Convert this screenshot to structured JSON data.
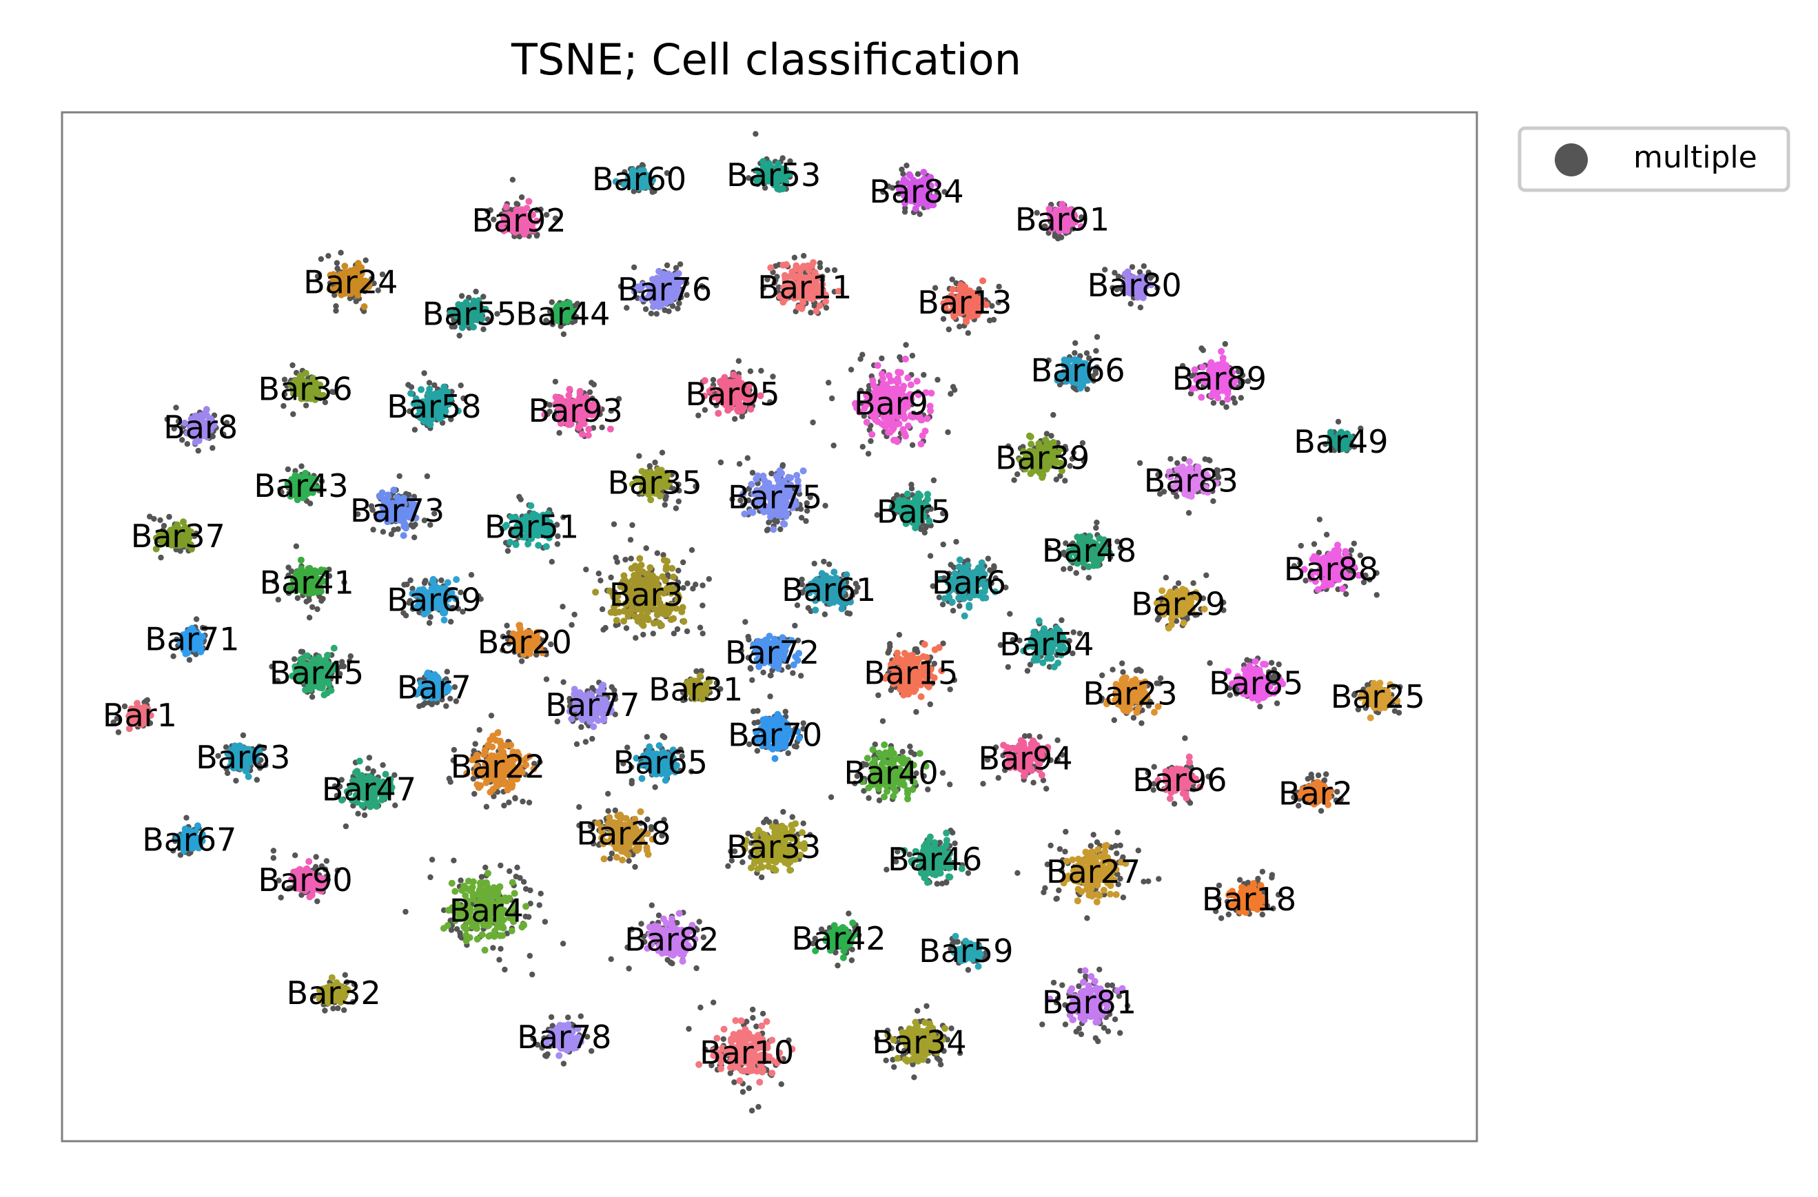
{
  "chart_data": {
    "type": "scatter",
    "title": "TSNE; Cell classification",
    "xlabel": "",
    "ylabel": "",
    "xlim": [
      0,
      1000
    ],
    "ylim": [
      0,
      1000
    ],
    "grid": false,
    "axis_ticks": false,
    "legend": {
      "placement": "outside-top-right",
      "entries": [
        "multiple"
      ],
      "marker_color": "#555555"
    },
    "series": [
      {
        "name": "multiple",
        "color": "#555555"
      }
    ],
    "clusters": [
      {
        "label": "Bar60",
        "x": 408,
        "y": 935,
        "spread": 12,
        "color": "#2aa7b8"
      },
      {
        "label": "Bar53",
        "x": 503,
        "y": 939,
        "spread": 14,
        "color": "#1fa38a"
      },
      {
        "label": "Bar84",
        "x": 604,
        "y": 923,
        "spread": 16,
        "color": "#d557e8"
      },
      {
        "label": "Bar91",
        "x": 707,
        "y": 896,
        "spread": 13,
        "color": "#ee5fc7"
      },
      {
        "label": "Bar92",
        "x": 323,
        "y": 895,
        "spread": 15,
        "color": "#f062b0"
      },
      {
        "label": "Bar24",
        "x": 204,
        "y": 835,
        "spread": 17,
        "color": "#cc8a23"
      },
      {
        "label": "Bar76",
        "x": 426,
        "y": 828,
        "spread": 20,
        "color": "#8f8cf2"
      },
      {
        "label": "Bar11",
        "x": 525,
        "y": 830,
        "spread": 22,
        "color": "#f47677"
      },
      {
        "label": "Bar13",
        "x": 638,
        "y": 815,
        "spread": 18,
        "color": "#f56d5e"
      },
      {
        "label": "Bar80",
        "x": 758,
        "y": 832,
        "spread": 12,
        "color": "#a184f0"
      },
      {
        "label": "Bar55",
        "x": 288,
        "y": 804,
        "spread": 13,
        "color": "#22a08f"
      },
      {
        "label": "Bar44",
        "x": 354,
        "y": 804,
        "spread": 10,
        "color": "#2bb05a"
      },
      {
        "label": "Bar36",
        "x": 172,
        "y": 731,
        "spread": 13,
        "color": "#84a22b"
      },
      {
        "label": "Bar58",
        "x": 263,
        "y": 714,
        "spread": 18,
        "color": "#23a4a4"
      },
      {
        "label": "Bar93",
        "x": 363,
        "y": 710,
        "spread": 20,
        "color": "#f25fb0"
      },
      {
        "label": "Bar95",
        "x": 474,
        "y": 726,
        "spread": 19,
        "color": "#f2628f"
      },
      {
        "label": "Bar9",
        "x": 586,
        "y": 717,
        "spread": 34,
        "color": "#f05fd8"
      },
      {
        "label": "Bar66",
        "x": 718,
        "y": 749,
        "spread": 14,
        "color": "#2aa0c8"
      },
      {
        "label": "Bar89",
        "x": 818,
        "y": 741,
        "spread": 19,
        "color": "#ee5fe6"
      },
      {
        "label": "Bar8",
        "x": 98,
        "y": 694,
        "spread": 12,
        "color": "#9f86ee"
      },
      {
        "label": "Bar49",
        "x": 904,
        "y": 680,
        "spread": 9,
        "color": "#1d9f8c"
      },
      {
        "label": "Bar39",
        "x": 693,
        "y": 664,
        "spread": 19,
        "color": "#7ea22a"
      },
      {
        "label": "Bar83",
        "x": 798,
        "y": 642,
        "spread": 17,
        "color": "#e07ff0"
      },
      {
        "label": "Bar43",
        "x": 169,
        "y": 637,
        "spread": 12,
        "color": "#2fb052"
      },
      {
        "label": "Bar35",
        "x": 419,
        "y": 640,
        "spread": 15,
        "color": "#98a02a"
      },
      {
        "label": "Bar75",
        "x": 504,
        "y": 626,
        "spread": 25,
        "color": "#7f8ff2"
      },
      {
        "label": "Bar5",
        "x": 602,
        "y": 612,
        "spread": 15,
        "color": "#22a88a"
      },
      {
        "label": "Bar73",
        "x": 237,
        "y": 613,
        "spread": 18,
        "color": "#6b8cf0"
      },
      {
        "label": "Bar51",
        "x": 332,
        "y": 597,
        "spread": 18,
        "color": "#22a89a"
      },
      {
        "label": "Bar37",
        "x": 82,
        "y": 588,
        "spread": 14,
        "color": "#7e9c28"
      },
      {
        "label": "Bar48",
        "x": 726,
        "y": 574,
        "spread": 17,
        "color": "#2aa377"
      },
      {
        "label": "Bar88",
        "x": 897,
        "y": 556,
        "spread": 20,
        "color": "#ee5fe3"
      },
      {
        "label": "Bar41",
        "x": 173,
        "y": 543,
        "spread": 17,
        "color": "#3cab40"
      },
      {
        "label": "Bar3",
        "x": 413,
        "y": 531,
        "spread": 36,
        "color": "#a3952a"
      },
      {
        "label": "Bar61",
        "x": 542,
        "y": 536,
        "spread": 19,
        "color": "#2b9eb5"
      },
      {
        "label": "Bar6",
        "x": 641,
        "y": 543,
        "spread": 21,
        "color": "#2aa3a8"
      },
      {
        "label": "Bar29",
        "x": 789,
        "y": 522,
        "spread": 17,
        "color": "#c8a030"
      },
      {
        "label": "Bar69",
        "x": 263,
        "y": 526,
        "spread": 17,
        "color": "#2fa1d6"
      },
      {
        "label": "Bar71",
        "x": 92,
        "y": 488,
        "spread": 11,
        "color": "#2e9df0"
      },
      {
        "label": "Bar20",
        "x": 327,
        "y": 485,
        "spread": 13,
        "color": "#e48a2b"
      },
      {
        "label": "Bar72",
        "x": 502,
        "y": 475,
        "spread": 17,
        "color": "#4d94f0"
      },
      {
        "label": "Bar54",
        "x": 696,
        "y": 483,
        "spread": 17,
        "color": "#26a59a"
      },
      {
        "label": "Bar45",
        "x": 180,
        "y": 455,
        "spread": 19,
        "color": "#2bab6e"
      },
      {
        "label": "Bar15",
        "x": 600,
        "y": 455,
        "spread": 24,
        "color": "#f57355"
      },
      {
        "label": "Bar85",
        "x": 844,
        "y": 445,
        "spread": 18,
        "color": "#ed5fe7"
      },
      {
        "label": "Bar7",
        "x": 263,
        "y": 441,
        "spread": 14,
        "color": "#2ea1de"
      },
      {
        "label": "Bar31",
        "x": 448,
        "y": 439,
        "spread": 11,
        "color": "#a29b2a"
      },
      {
        "label": "Bar23",
        "x": 755,
        "y": 435,
        "spread": 18,
        "color": "#e1902f"
      },
      {
        "label": "Bar25",
        "x": 930,
        "y": 432,
        "spread": 13,
        "color": "#d79f35"
      },
      {
        "label": "Bar1",
        "x": 55,
        "y": 414,
        "spread": 10,
        "color": "#f07080"
      },
      {
        "label": "Bar77",
        "x": 375,
        "y": 424,
        "spread": 19,
        "color": "#9f8bf0"
      },
      {
        "label": "Bar70",
        "x": 504,
        "y": 395,
        "spread": 18,
        "color": "#3296ec"
      },
      {
        "label": "Bar63",
        "x": 128,
        "y": 373,
        "spread": 14,
        "color": "#28a2c0"
      },
      {
        "label": "Bar22",
        "x": 308,
        "y": 364,
        "spread": 26,
        "color": "#e08a2e"
      },
      {
        "label": "Bar65",
        "x": 423,
        "y": 368,
        "spread": 16,
        "color": "#27a0c8"
      },
      {
        "label": "Bar94",
        "x": 681,
        "y": 372,
        "spread": 18,
        "color": "#f25f9a"
      },
      {
        "label": "Bar40",
        "x": 586,
        "y": 358,
        "spread": 24,
        "color": "#58b03a"
      },
      {
        "label": "Bar47",
        "x": 217,
        "y": 342,
        "spread": 18,
        "color": "#2aa57a"
      },
      {
        "label": "Bar96",
        "x": 790,
        "y": 351,
        "spread": 15,
        "color": "#f2659a"
      },
      {
        "label": "Bar2",
        "x": 886,
        "y": 338,
        "spread": 12,
        "color": "#ed8030"
      },
      {
        "label": "Bar67",
        "x": 90,
        "y": 293,
        "spread": 11,
        "color": "#27a2d4"
      },
      {
        "label": "Bar28",
        "x": 397,
        "y": 299,
        "spread": 21,
        "color": "#c89530"
      },
      {
        "label": "Bar33",
        "x": 503,
        "y": 286,
        "spread": 25,
        "color": "#a7a02a"
      },
      {
        "label": "Bar46",
        "x": 617,
        "y": 274,
        "spread": 20,
        "color": "#29a881"
      },
      {
        "label": "Bar27",
        "x": 729,
        "y": 262,
        "spread": 26,
        "color": "#c99a2e"
      },
      {
        "label": "Bar90",
        "x": 172,
        "y": 254,
        "spread": 15,
        "color": "#f05fb6"
      },
      {
        "label": "Bar4",
        "x": 300,
        "y": 224,
        "spread": 34,
        "color": "#6aae36"
      },
      {
        "label": "Bar18",
        "x": 839,
        "y": 235,
        "spread": 16,
        "color": "#f27a2a"
      },
      {
        "label": "Bar82",
        "x": 431,
        "y": 196,
        "spread": 20,
        "color": "#c97cf0"
      },
      {
        "label": "Bar42",
        "x": 549,
        "y": 197,
        "spread": 14,
        "color": "#2cb04c"
      },
      {
        "label": "Bar59",
        "x": 639,
        "y": 185,
        "spread": 12,
        "color": "#2aa7b5"
      },
      {
        "label": "Bar81",
        "x": 726,
        "y": 135,
        "spread": 22,
        "color": "#c47cf0"
      },
      {
        "label": "Bar32",
        "x": 192,
        "y": 144,
        "spread": 12,
        "color": "#a7a02a"
      },
      {
        "label": "Bar78",
        "x": 355,
        "y": 101,
        "spread": 15,
        "color": "#a48cf2"
      },
      {
        "label": "Bar10",
        "x": 484,
        "y": 86,
        "spread": 28,
        "color": "#f47780"
      },
      {
        "label": "Bar34",
        "x": 606,
        "y": 96,
        "spread": 22,
        "color": "#a4a02c"
      }
    ]
  }
}
